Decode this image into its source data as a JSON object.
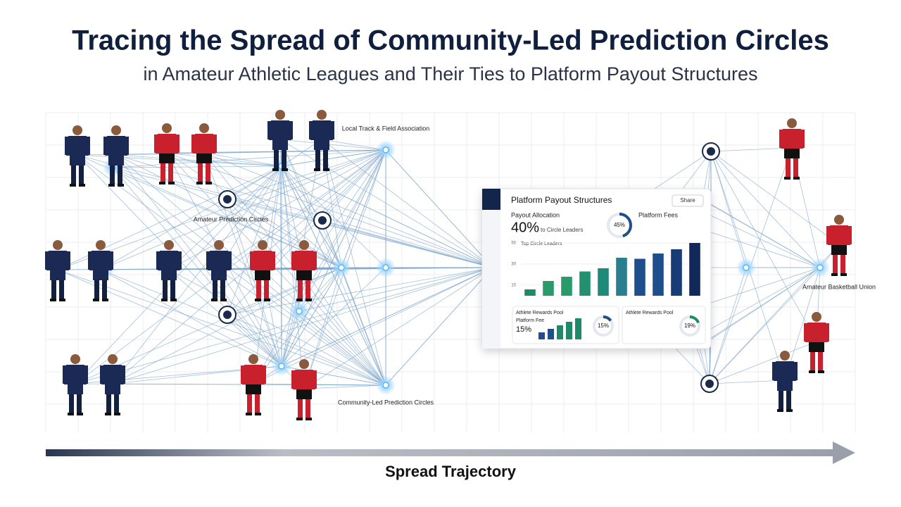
{
  "header": {
    "title": "Tracing the Spread of Community-Led Prediction Circles",
    "subtitle": "in Amateur Athletic Leagues and Their Ties to Platform Payout Structures"
  },
  "nodes": [
    {
      "label": "Local Track & Field Association"
    },
    {
      "label": "Amateur Prediction Circles"
    },
    {
      "label": "Community-Led Prediction Circles"
    },
    {
      "label": "Amateur Basketball Union"
    }
  ],
  "dashboard": {
    "title": "Platform Payout Structures",
    "button": "Share",
    "allocation_label": "Payout Allocation",
    "allocation_value": "40%",
    "allocation_note": "to Circle Leaders",
    "donut": {
      "value": 45,
      "label": "45%"
    },
    "fees_label": "Platform Fees",
    "chart": {
      "caption": "Top Circle Leaders",
      "values": [
        6,
        14,
        18,
        23,
        26,
        36,
        35,
        40,
        44,
        50
      ],
      "ylim": [
        0,
        50
      ],
      "yticks": [
        10,
        30,
        50
      ]
    },
    "cards": [
      {
        "title": "Athlete Rewards Pool",
        "subtitle": "Platform Fee",
        "value": "15%",
        "bars": [
          2,
          3,
          4,
          5,
          6
        ],
        "donut": {
          "value": 15,
          "label": "15%"
        }
      },
      {
        "title": "Athlete Rewards Pool",
        "donut": {
          "value": 19,
          "label": "19%"
        }
      }
    ]
  },
  "axis": {
    "label": "Spread Trajectory"
  }
}
